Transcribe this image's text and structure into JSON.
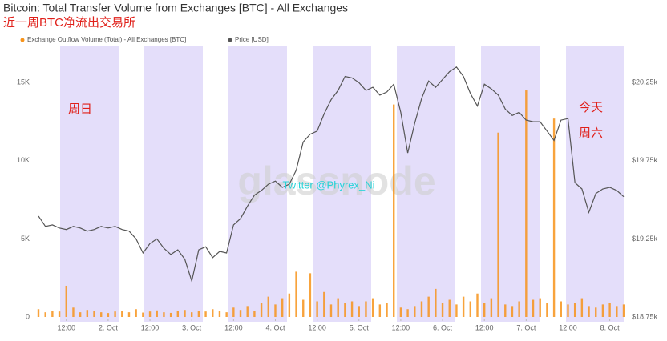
{
  "chart_data": {
    "type": "combo",
    "title": "Bitcoin: Total Transfer Volume from Exchanges [BTC] - All Exchanges",
    "subtitle": "近一周BTC净流出交易所",
    "annotations": [
      "周日",
      "今天",
      "周六"
    ],
    "watermark": "glassnode",
    "credit": "Twitter @Phyrex_Ni",
    "x": [
      "1. Oct 04:00",
      "1. Oct 06:00",
      "1. Oct 08:00",
      "1. Oct 10:00",
      "1. Oct 12:00",
      "1. Oct 14:00",
      "1. Oct 16:00",
      "1. Oct 18:00",
      "1. Oct 20:00",
      "1. Oct 22:00",
      "2. Oct 00:00",
      "2. Oct 02:00",
      "2. Oct 04:00",
      "2. Oct 06:00",
      "2. Oct 08:00",
      "2. Oct 10:00",
      "2. Oct 12:00",
      "2. Oct 14:00",
      "2. Oct 16:00",
      "2. Oct 18:00",
      "2. Oct 20:00",
      "2. Oct 22:00",
      "3. Oct 00:00",
      "3. Oct 02:00",
      "3. Oct 04:00",
      "3. Oct 06:00",
      "3. Oct 08:00",
      "3. Oct 10:00",
      "3. Oct 12:00",
      "3. Oct 14:00",
      "3. Oct 16:00",
      "3. Oct 18:00",
      "3. Oct 20:00",
      "3. Oct 22:00",
      "4. Oct 00:00",
      "4. Oct 02:00",
      "4. Oct 04:00",
      "4. Oct 06:00",
      "4. Oct 08:00",
      "4. Oct 10:00",
      "4. Oct 12:00",
      "4. Oct 14:00",
      "4. Oct 16:00",
      "4. Oct 18:00",
      "4. Oct 20:00",
      "4. Oct 22:00",
      "5. Oct 00:00",
      "5. Oct 02:00",
      "5. Oct 04:00",
      "5. Oct 06:00",
      "5. Oct 08:00",
      "5. Oct 10:00",
      "5. Oct 12:00",
      "5. Oct 14:00",
      "5. Oct 16:00",
      "5. Oct 18:00",
      "5. Oct 20:00",
      "5. Oct 22:00",
      "6. Oct 00:00",
      "6. Oct 02:00",
      "6. Oct 04:00",
      "6. Oct 06:00",
      "6. Oct 08:00",
      "6. Oct 10:00",
      "6. Oct 12:00",
      "6. Oct 14:00",
      "6. Oct 16:00",
      "6. Oct 18:00",
      "6. Oct 20:00",
      "6. Oct 22:00",
      "7. Oct 00:00",
      "7. Oct 02:00",
      "7. Oct 04:00",
      "7. Oct 06:00",
      "7. Oct 08:00",
      "7. Oct 10:00",
      "7. Oct 12:00",
      "7. Oct 14:00",
      "7. Oct 16:00",
      "7. Oct 18:00",
      "7. Oct 20:00",
      "7. Oct 22:00",
      "8. Oct 00:00",
      "8. Oct 02:00",
      "8. Oct 04:00"
    ],
    "series": [
      {
        "name": "Exchange Outflow Volume (Total) - All Exchanges [BTC]",
        "color": "#f7931a",
        "type": "bar",
        "values": [
          500,
          300,
          400,
          350,
          2000,
          600,
          300,
          450,
          380,
          300,
          250,
          350,
          400,
          300,
          500,
          280,
          350,
          420,
          300,
          260,
          380,
          450,
          300,
          400,
          350,
          500,
          380,
          300,
          600,
          450,
          700,
          400,
          900,
          1300,
          800,
          1200,
          1500,
          2900,
          1100,
          2800,
          1000,
          1600,
          800,
          1200,
          900,
          1000,
          700,
          1000,
          1200,
          800,
          900,
          13600,
          600,
          500,
          700,
          1000,
          1300,
          1800,
          900,
          1100,
          800,
          1300,
          1000,
          1500,
          900,
          1200,
          11800,
          800,
          700,
          1000,
          14500,
          1100,
          1200,
          900,
          12700,
          1000,
          800,
          900,
          1200,
          700,
          600,
          800,
          900,
          700,
          800
        ]
      },
      {
        "name": "Price [USD]",
        "color": "#555555",
        "type": "line",
        "axis": "y2",
        "values": [
          19396,
          19330,
          19340,
          19320,
          19310,
          19330,
          19320,
          19300,
          19310,
          19330,
          19320,
          19330,
          19310,
          19300,
          19250,
          19160,
          19220,
          19250,
          19190,
          19150,
          19180,
          19120,
          18980,
          19180,
          19200,
          19130,
          19170,
          19160,
          19340,
          19380,
          19460,
          19530,
          19560,
          19600,
          19620,
          19580,
          19600,
          19690,
          19870,
          19920,
          19940,
          20050,
          20140,
          20200,
          20290,
          20280,
          20250,
          20200,
          20220,
          20170,
          20190,
          20240,
          20060,
          19800,
          19990,
          20150,
          20260,
          20220,
          20270,
          20320,
          20350,
          20290,
          20180,
          20100,
          20240,
          20210,
          20170,
          20080,
          20040,
          20060,
          20010,
          20000,
          20000,
          19940,
          19880,
          20010,
          20020,
          19610,
          19570,
          19420,
          19540,
          19570,
          19580,
          19560,
          19520
        ]
      }
    ],
    "xlim": [
      "1. Oct 04:00",
      "8. Oct 04:00"
    ],
    "xticks": [
      {
        "value": "1. Oct 12:00",
        "label": "12:00"
      },
      {
        "value": "2. Oct 00:00",
        "label": "2. Oct"
      },
      {
        "value": "2. Oct 12:00",
        "label": "12:00"
      },
      {
        "value": "3. Oct 00:00",
        "label": "3. Oct"
      },
      {
        "value": "3. Oct 12:00",
        "label": "12:00"
      },
      {
        "value": "4. Oct 00:00",
        "label": "4. Oct"
      },
      {
        "value": "4. Oct 12:00",
        "label": "12:00"
      },
      {
        "value": "5. Oct 00:00",
        "label": "5. Oct"
      },
      {
        "value": "5. Oct 12:00",
        "label": "12:00"
      },
      {
        "value": "6. Oct 00:00",
        "label": "6. Oct"
      },
      {
        "value": "6. Oct 12:00",
        "label": "12:00"
      },
      {
        "value": "7. Oct 00:00",
        "label": "7. Oct"
      },
      {
        "value": "7. Oct 12:00",
        "label": "12:00"
      },
      {
        "value": "8. Oct 00:00",
        "label": "8. Oct"
      }
    ],
    "ylim": [
      0,
      16500
    ],
    "yticks": [
      0,
      {
        "value": 5000,
        "label": "5K"
      },
      {
        "value": 10000,
        "label": "10K"
      },
      {
        "value": 15000,
        "label": "15K"
      }
    ],
    "y2lim": [
      18750,
      20400
    ],
    "y2ticks": [
      {
        "value": 18750,
        "label": "$18.75k"
      },
      {
        "value": 19250,
        "label": "$19.25k"
      },
      {
        "value": 19750,
        "label": "$19.75k"
      },
      {
        "value": 20250,
        "label": "$20.25k"
      }
    ],
    "grid": false
  }
}
